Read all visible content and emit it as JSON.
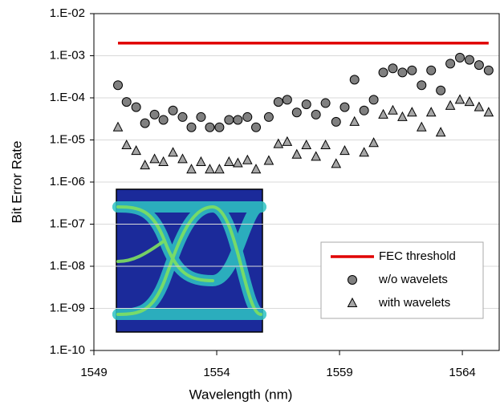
{
  "chart_data": {
    "type": "scatter",
    "x_label": "Wavelength (nm)",
    "y_label": "Bit Error Rate",
    "log_y": true,
    "grid": true,
    "legend": "lower right",
    "xlim": [
      1549,
      1565.5
    ],
    "xticks": [
      1549,
      1554,
      1559,
      1564
    ],
    "ylim": [
      1e-10,
      0.01
    ],
    "yticks": [
      {
        "value": 1e-10,
        "label": "1.E-10"
      },
      {
        "value": 1e-09,
        "label": "1.E-09"
      },
      {
        "value": 1e-08,
        "label": "1.E-08"
      },
      {
        "value": 1e-07,
        "label": "1.E-07"
      },
      {
        "value": 1e-06,
        "label": "1.E-06"
      },
      {
        "value": 1e-05,
        "label": "1.E-05"
      },
      {
        "value": 0.0001,
        "label": "1.E-04"
      },
      {
        "value": 0.001,
        "label": "1.E-03"
      },
      {
        "value": 0.01,
        "label": "1.E-02"
      }
    ],
    "series": [
      {
        "name": "FEC threshold",
        "color": "#e00000",
        "mode": "line",
        "x": [
          1549.98,
          1565.07
        ],
        "values": [
          0.002,
          0.002
        ]
      },
      {
        "name": "w/o wavelets",
        "color": "#808080",
        "mode": "circle",
        "x": [
          1549.98,
          1550.33,
          1550.72,
          1551.08,
          1551.47,
          1551.83,
          1552.22,
          1552.61,
          1552.97,
          1553.36,
          1553.72,
          1554.11,
          1554.5,
          1554.86,
          1555.25,
          1555.6,
          1556.12,
          1556.51,
          1556.87,
          1557.26,
          1557.65,
          1558.04,
          1558.43,
          1558.86,
          1559.21,
          1559.61,
          1560.0,
          1560.39,
          1560.78,
          1561.17,
          1561.56,
          1561.95,
          1562.34,
          1562.73,
          1563.12,
          1563.51,
          1563.9,
          1564.29,
          1564.68,
          1565.07
        ],
        "values": [
          0.0002,
          8e-05,
          6e-05,
          2.5e-05,
          4e-05,
          3e-05,
          5e-05,
          3.5e-05,
          2e-05,
          3.5e-05,
          2e-05,
          2e-05,
          3e-05,
          3e-05,
          3.5e-05,
          2e-05,
          3.5e-05,
          8e-05,
          9e-05,
          4.5e-05,
          7e-05,
          4e-05,
          7.5e-05,
          2.7e-05,
          6e-05,
          0.00027,
          5e-05,
          9e-05,
          0.0004,
          0.0005,
          0.0004,
          0.00045,
          0.0002,
          0.00045,
          0.00015,
          0.00065,
          0.0009,
          0.0008,
          0.0006,
          0.00045
        ]
      },
      {
        "name": "with wavelets",
        "color": "#a6a6a6",
        "mode": "triangle",
        "x": [
          1549.98,
          1550.33,
          1550.72,
          1551.08,
          1551.47,
          1551.83,
          1552.22,
          1552.61,
          1552.97,
          1553.36,
          1553.72,
          1554.11,
          1554.5,
          1554.86,
          1555.25,
          1555.6,
          1556.12,
          1556.51,
          1556.87,
          1557.26,
          1557.65,
          1558.04,
          1558.43,
          1558.86,
          1559.21,
          1559.61,
          1560.0,
          1560.39,
          1560.78,
          1561.17,
          1561.56,
          1561.95,
          1562.34,
          1562.73,
          1563.12,
          1563.51,
          1563.9,
          1564.29,
          1564.68,
          1565.07
        ],
        "values": [
          2e-05,
          7.5e-06,
          5.5e-06,
          2.5e-06,
          3.5e-06,
          3e-06,
          5e-06,
          3.5e-06,
          2e-06,
          3e-06,
          2e-06,
          2e-06,
          3e-06,
          2.8e-06,
          3.3e-06,
          2e-06,
          3.2e-06,
          8e-06,
          9e-06,
          4.5e-06,
          7.5e-06,
          4e-06,
          7.5e-06,
          2.7e-06,
          5.5e-06,
          2.7e-05,
          5e-06,
          8.5e-06,
          4e-05,
          5e-05,
          3.5e-05,
          4.5e-05,
          2e-05,
          4.5e-05,
          1.5e-05,
          6.5e-05,
          9e-05,
          8e-05,
          6e-05,
          4.5e-05
        ]
      }
    ]
  }
}
